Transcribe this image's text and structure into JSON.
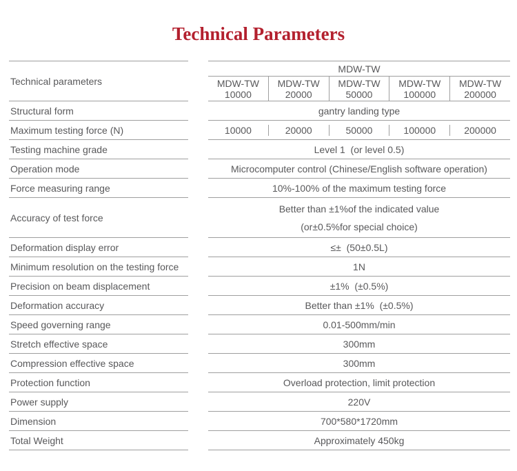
{
  "title": "Technical Parameters",
  "colors": {
    "accent_red": "#b3202e",
    "text_gray": "#58585a",
    "line_gray": "#9e9e9e"
  },
  "table": {
    "corner_label": "Technical parameters",
    "series_group": "MDW-TW",
    "models": [
      {
        "series": "MDW-TW",
        "capacity": "10000"
      },
      {
        "series": "MDW-TW",
        "capacity": "20000"
      },
      {
        "series": "MDW-TW",
        "capacity": "50000"
      },
      {
        "series": "MDW-TW",
        "capacity": "100000"
      },
      {
        "series": "MDW-TW",
        "capacity": "200000"
      }
    ],
    "rows": [
      {
        "label": "Structural form",
        "value": "gantry landing type"
      },
      {
        "label": "Maximum testing force (N)",
        "values": [
          "10000",
          "20000",
          "50000",
          "100000",
          "200000"
        ]
      },
      {
        "label": "Testing machine grade",
        "value": "Level 1  (or level 0.5)"
      },
      {
        "label": "Operation mode",
        "value": "Microcomputer control (Chinese/English software operation)"
      },
      {
        "label": "Force measuring range",
        "value": "10%-100% of the maximum testing force"
      },
      {
        "label": "Accuracy of test force",
        "lines": [
          "Better than ±1%of the indicated value",
          "(or±0.5%for special choice)"
        ]
      },
      {
        "label": "Deformation display error",
        "value": "≤±  (50±0.5L)"
      },
      {
        "label": "Minimum resolution on the testing force",
        "value": "1N"
      },
      {
        "label": "Precision on beam displacement",
        "value": "±1%  (±0.5%)"
      },
      {
        "label": "Deformation accuracy",
        "value": "Better than ±1%  (±0.5%)"
      },
      {
        "label": "Speed governing range",
        "value": "0.01-500mm/min"
      },
      {
        "label": "Stretch effective space",
        "value": "300mm"
      },
      {
        "label": "Compression effective space",
        "value": "300mm"
      },
      {
        "label": "Protection function",
        "value": "Overload protection, limit protection"
      },
      {
        "label": "Power supply",
        "value": "220V"
      },
      {
        "label": "Dimension",
        "value": "700*580*1720mm"
      },
      {
        "label": "Total Weight",
        "value": "Approximately 450kg"
      }
    ]
  }
}
